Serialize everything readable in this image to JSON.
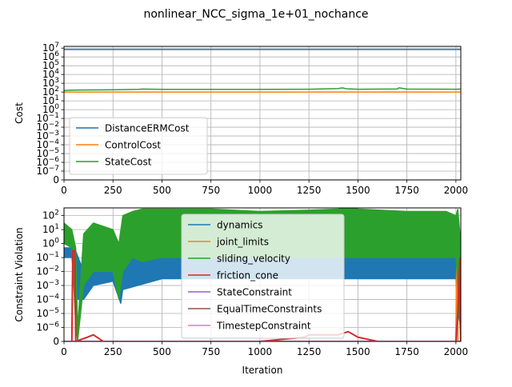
{
  "figure": {
    "title": "nonlinear_NCC_sigma_1e+01_nochance"
  },
  "chart_data": [
    {
      "type": "line",
      "ylabel": "Cost",
      "xlabel": "",
      "xlim": [
        0,
        2025
      ],
      "x_ticks": [
        0,
        250,
        500,
        750,
        1000,
        1250,
        1500,
        1750,
        2000
      ],
      "y_scale": "symlog",
      "y_ticks": [
        {
          "value": 0,
          "label": "0"
        },
        {
          "value": 1e-07,
          "label": "10^-7"
        },
        {
          "value": 1e-06,
          "label": "10^-6"
        },
        {
          "value": 1e-05,
          "label": "10^-5"
        },
        {
          "value": 0.0001,
          "label": "10^-4"
        },
        {
          "value": 0.001,
          "label": "10^-3"
        },
        {
          "value": 0.01,
          "label": "10^-2"
        },
        {
          "value": 0.1,
          "label": "10^-1"
        },
        {
          "value": 1,
          "label": "10^0"
        },
        {
          "value": 10,
          "label": "10^1"
        },
        {
          "value": 100,
          "label": "10^2"
        },
        {
          "value": 1000,
          "label": "10^3"
        },
        {
          "value": 10000,
          "label": "10^4"
        },
        {
          "value": 100000,
          "label": "10^5"
        },
        {
          "value": 1000000,
          "label": "10^6"
        },
        {
          "value": 10000000,
          "label": "10^7"
        }
      ],
      "grid": true,
      "legend_position": "lower-left",
      "series": [
        {
          "name": "DistanceERMCost",
          "color": "#1f77b4",
          "x": [
            0,
            250,
            500,
            750,
            1000,
            1250,
            1500,
            1750,
            2025
          ],
          "values": [
            7000000,
            7000000,
            7000000,
            7000000,
            7000000,
            7000000,
            7000000,
            7000000,
            7000000
          ]
        },
        {
          "name": "ControlCost",
          "color": "#ff7f0e",
          "x": [
            0,
            250,
            500,
            750,
            1000,
            1250,
            1500,
            1750,
            2025
          ],
          "values": [
            100,
            100,
            100,
            100,
            100,
            100,
            100,
            100,
            100
          ]
        },
        {
          "name": "StateCost",
          "color": "#2ca02c",
          "x": [
            0,
            20,
            60,
            250,
            380,
            400,
            500,
            750,
            1000,
            1250,
            1400,
            1420,
            1440,
            1500,
            1700,
            1710,
            1750,
            2000,
            2025
          ],
          "values": [
            150,
            160,
            170,
            180,
            200,
            220,
            200,
            200,
            200,
            210,
            250,
            300,
            240,
            210,
            230,
            300,
            220,
            210,
            220
          ]
        }
      ]
    },
    {
      "type": "area",
      "ylabel": "Constraint Violation",
      "xlabel": "Iteration",
      "xlim": [
        0,
        2025
      ],
      "x_ticks": [
        0,
        250,
        500,
        750,
        1000,
        1250,
        1500,
        1750,
        2000
      ],
      "y_scale": "symlog",
      "y_ticks": [
        {
          "value": 0,
          "label": "0"
        },
        {
          "value": 1e-06,
          "label": "10^-6"
        },
        {
          "value": 1e-05,
          "label": "10^-5"
        },
        {
          "value": 0.0001,
          "label": "10^-4"
        },
        {
          "value": 0.001,
          "label": "10^-3"
        },
        {
          "value": 0.01,
          "label": "10^-2"
        },
        {
          "value": 0.1,
          "label": "10^-1"
        },
        {
          "value": 1,
          "label": "10^0"
        },
        {
          "value": 10,
          "label": "10^1"
        },
        {
          "value": 100,
          "label": "10^2"
        }
      ],
      "grid": true,
      "legend_position": "center",
      "series": [
        {
          "name": "dynamics",
          "color": "#1f77b4",
          "x": [
            0,
            40,
            60,
            100,
            150,
            250,
            290,
            300,
            500,
            1000,
            1500,
            2000,
            2010,
            2025
          ],
          "upper": [
            0.5,
            0.5,
            0.3,
            0.01,
            0.02,
            0.01,
            0.01,
            0.1,
            0.2,
            0.1,
            0.1,
            0.1,
            0.005,
            0.0001
          ],
          "lower": [
            0.1,
            0.1,
            0.0001,
            0.0001,
            0.001,
            0.002,
            5e-05,
            0.0005,
            0.003,
            0.003,
            0.003,
            0.003,
            1e-05,
            1e-06
          ]
        },
        {
          "name": "joint_limits",
          "color": "#ff7f0e",
          "x": [
            0,
            2000,
            2005,
            2010,
            2025
          ],
          "values": [
            0,
            0,
            0.05,
            0,
            0
          ]
        },
        {
          "name": "sliding_velocity",
          "color": "#2ca02c",
          "x": [
            0,
            40,
            60,
            70,
            100,
            150,
            250,
            280,
            300,
            350,
            400,
            500,
            750,
            1000,
            1250,
            1400,
            1440,
            1500,
            1750,
            1950,
            2000,
            2010,
            2025
          ],
          "upper": [
            30,
            10,
            0.5,
            1e-06,
            5,
            30,
            10,
            1,
            100,
            200,
            300,
            300,
            300,
            200,
            250,
            300,
            500,
            300,
            200,
            200,
            100,
            300,
            1
          ],
          "lower": [
            1,
            0.5,
            1e-06,
            0,
            0.001,
            0.01,
            0.01,
            0.0001,
            0.01,
            0.1,
            0.05,
            0.1,
            0.1,
            0.1,
            0.1,
            0.1,
            0.1,
            0.1,
            0.1,
            0.1,
            0.1,
            0.001,
            0
          ]
        },
        {
          "name": "friction_cone",
          "color": "#d62728",
          "x": [
            0,
            40,
            45,
            55,
            60,
            120,
            150,
            200,
            500,
            1000,
            1230,
            1250,
            1400,
            1450,
            1500,
            1600,
            1750,
            2000,
            2010,
            2020,
            2025
          ],
          "values": [
            0,
            0,
            0.3,
            0.3,
            0,
            2e-07,
            3e-07,
            1e-07,
            0,
            1e-07,
            2e-07,
            3e-07,
            3e-07,
            5e-07,
            2e-07,
            1e-07,
            1e-07,
            1e-07,
            1e-05,
            0.1,
            0
          ]
        },
        {
          "name": "StateConstraint",
          "color": "#9467bd",
          "x": [
            0,
            2025
          ],
          "values": [
            0,
            0
          ]
        },
        {
          "name": "EqualTimeConstraints",
          "color": "#8c564b",
          "x": [
            0,
            2025
          ],
          "values": [
            0,
            0
          ]
        },
        {
          "name": "TimestepConstraint",
          "color": "#e377c2",
          "x": [
            0,
            2025
          ],
          "values": [
            0,
            0
          ]
        }
      ]
    }
  ]
}
